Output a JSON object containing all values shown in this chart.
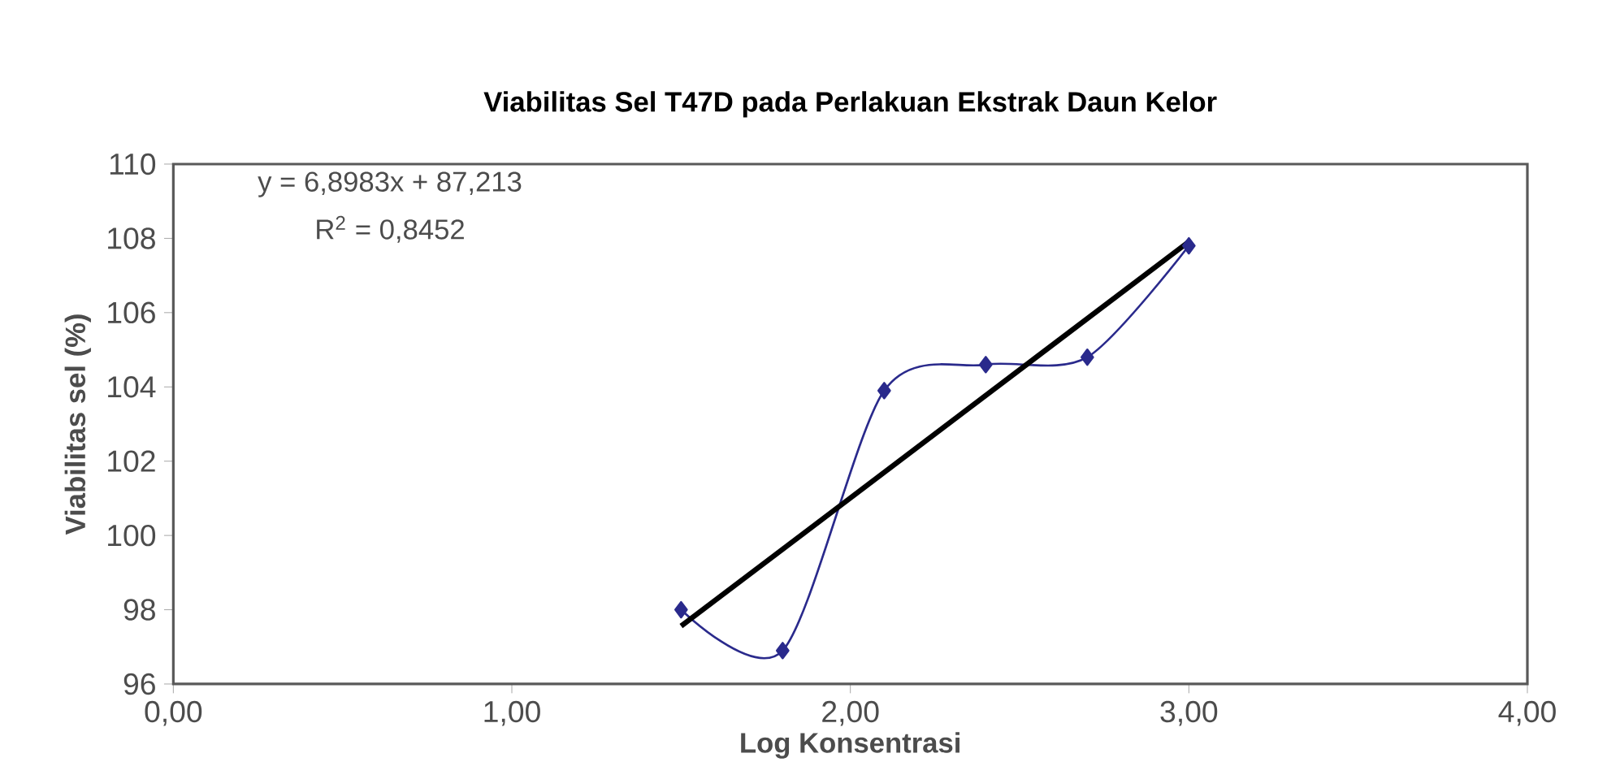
{
  "chart_data": {
    "type": "line",
    "title": "Viabilitas  Sel T47D pada Perlakuan Ekstrak Daun Kelor",
    "xlabel": "Log Konsentrasi",
    "ylabel": "Viabilitas sel (%)",
    "annotations": [
      "y = 6,8983x + 87,213",
      "R$^{2}$ = 0,8452"
    ],
    "series": [
      {
        "color": "#2a2a8c",
        "x": [
          1.5,
          1.8,
          2.1,
          2.4,
          2.7,
          3.0
        ],
        "values": [
          98.0,
          96.9,
          103.9,
          104.6,
          104.8,
          107.8
        ],
        "marker": "diamond"
      },
      {
        "type": "line",
        "color": "#000000",
        "x": [
          1.5,
          3.0
        ],
        "values": [
          97.56,
          107.91
        ],
        "marker": "none"
      }
    ],
    "xlim": [
      0,
      4
    ],
    "ylim": [
      96,
      110
    ],
    "xticks": [
      {
        "value": 0,
        "label": "0,00"
      },
      {
        "value": 1,
        "label": "1,00"
      },
      {
        "value": 2,
        "label": "2,00"
      },
      {
        "value": 3,
        "label": "3,00"
      },
      {
        "value": 4,
        "label": "4,00"
      }
    ],
    "yticks": [
      96,
      98,
      100,
      102,
      104,
      106,
      108,
      110
    ],
    "grid": false
  }
}
